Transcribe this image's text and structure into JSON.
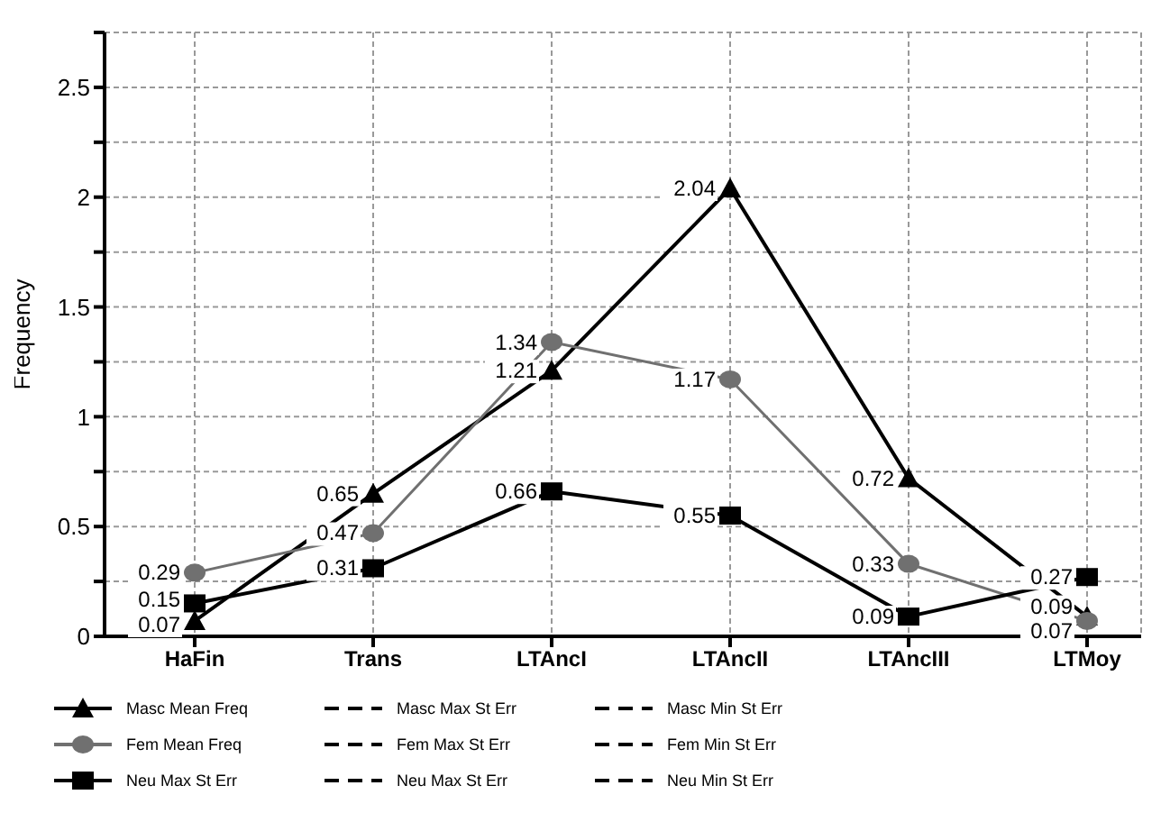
{
  "chart_data": {
    "type": "line",
    "ylabel": "Frequency",
    "categories": [
      "HaFin",
      "Trans",
      "LTAncI",
      "LTAncII",
      "LTAncIII",
      "LTMoy"
    ],
    "series": [
      {
        "name": "Masc Mean Freq",
        "color": "#000000",
        "marker": "triangle",
        "line_style": "solid",
        "values": [
          0.07,
          0.65,
          1.21,
          2.04,
          0.72,
          0.09
        ]
      },
      {
        "name": "Masc Max St Err",
        "color": "#000000",
        "marker": "none",
        "line_style": "dashed",
        "values": [
          null,
          null,
          null,
          null,
          null,
          null
        ]
      },
      {
        "name": "Masc Min St Err",
        "color": "#000000",
        "marker": "none",
        "line_style": "dashed",
        "values": [
          null,
          null,
          null,
          null,
          null,
          null
        ]
      },
      {
        "name": "Fem Mean Freq",
        "color": "#707070",
        "marker": "circle",
        "line_style": "solid",
        "values": [
          0.29,
          0.47,
          1.34,
          1.17,
          0.33,
          0.07
        ]
      },
      {
        "name": "Fem Max St Err",
        "color": "#000000",
        "marker": "none",
        "line_style": "dashed",
        "values": [
          null,
          null,
          null,
          null,
          null,
          null
        ]
      },
      {
        "name": "Fem Min St Err",
        "color": "#000000",
        "marker": "none",
        "line_style": "dashed",
        "values": [
          null,
          null,
          null,
          null,
          null,
          null
        ]
      },
      {
        "name": "Neu Max St Err",
        "color": "#000000",
        "marker": "square",
        "line_style": "solid",
        "values": [
          0.15,
          0.31,
          0.66,
          0.55,
          0.09,
          0.27
        ]
      },
      {
        "name": "Neu Max St Err",
        "color": "#000000",
        "marker": "none",
        "line_style": "dashed",
        "values": [
          null,
          null,
          null,
          null,
          null,
          null
        ]
      },
      {
        "name": "Neu Min St Err",
        "color": "#000000",
        "marker": "none",
        "line_style": "dashed",
        "values": [
          null,
          null,
          null,
          null,
          null,
          null
        ]
      }
    ],
    "ylim": [
      0,
      2.75
    ],
    "yticks": [
      0,
      {
        "value": 0.25,
        "label": null
      },
      0.5,
      {
        "value": 0.75,
        "label": null
      },
      1,
      {
        "value": 1.25,
        "label": null
      },
      1.5,
      {
        "value": 1.75,
        "label": null
      },
      2,
      {
        "value": 2.25,
        "label": null
      },
      2.5,
      {
        "value": 2.75,
        "label": null
      }
    ],
    "grid": true,
    "legend": "bottom",
    "data_labels": true
  }
}
